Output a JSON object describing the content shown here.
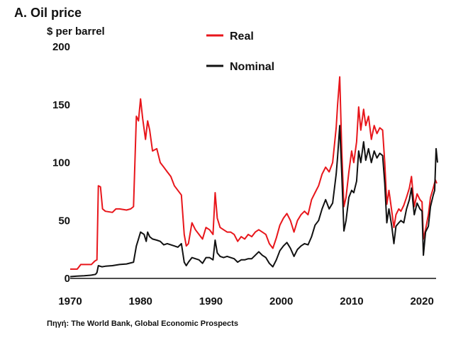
{
  "chart_data": {
    "type": "line",
    "title": "A. Oil price",
    "ylabel": "$ per barrel",
    "xlabel": "",
    "xlim": [
      1970,
      2022
    ],
    "ylim": [
      0,
      200
    ],
    "x_ticks": [
      1970,
      1980,
      1990,
      2000,
      2010,
      2020
    ],
    "y_ticks": [
      0,
      50,
      100,
      150,
      200
    ],
    "legend_position": "top-center",
    "series": [
      {
        "name": "Real",
        "color": "#e8161b",
        "points": [
          [
            1970,
            8
          ],
          [
            1971,
            8
          ],
          [
            1971.5,
            12
          ],
          [
            1972,
            12
          ],
          [
            1973,
            12
          ],
          [
            1973.5,
            15
          ],
          [
            1973.8,
            16
          ],
          [
            1974.0,
            80
          ],
          [
            1974.3,
            79
          ],
          [
            1974.6,
            60
          ],
          [
            1975,
            58
          ],
          [
            1976,
            57
          ],
          [
            1976.5,
            60
          ],
          [
            1977,
            60
          ],
          [
            1978,
            59
          ],
          [
            1978.6,
            60
          ],
          [
            1979.0,
            62
          ],
          [
            1979.4,
            140
          ],
          [
            1979.7,
            136
          ],
          [
            1980.0,
            155
          ],
          [
            1980.3,
            138
          ],
          [
            1980.7,
            120
          ],
          [
            1981.0,
            136
          ],
          [
            1981.3,
            128
          ],
          [
            1981.7,
            110
          ],
          [
            1982.3,
            112
          ],
          [
            1982.8,
            100
          ],
          [
            1983.3,
            96
          ],
          [
            1983.8,
            92
          ],
          [
            1984.3,
            88
          ],
          [
            1984.8,
            80
          ],
          [
            1985.3,
            76
          ],
          [
            1985.8,
            72
          ],
          [
            1986.2,
            38
          ],
          [
            1986.5,
            28
          ],
          [
            1986.8,
            30
          ],
          [
            1987.3,
            48
          ],
          [
            1987.8,
            42
          ],
          [
            1988.3,
            38
          ],
          [
            1988.8,
            34
          ],
          [
            1989.3,
            44
          ],
          [
            1989.8,
            42
          ],
          [
            1990.3,
            38
          ],
          [
            1990.6,
            74
          ],
          [
            1990.9,
            52
          ],
          [
            1991.3,
            44
          ],
          [
            1991.8,
            42
          ],
          [
            1992.3,
            40
          ],
          [
            1992.8,
            40
          ],
          [
            1993.3,
            38
          ],
          [
            1993.8,
            32
          ],
          [
            1994.3,
            36
          ],
          [
            1994.8,
            34
          ],
          [
            1995.3,
            38
          ],
          [
            1995.8,
            36
          ],
          [
            1996.3,
            40
          ],
          [
            1996.8,
            42
          ],
          [
            1997.3,
            40
          ],
          [
            1997.8,
            38
          ],
          [
            1998.3,
            30
          ],
          [
            1998.8,
            26
          ],
          [
            1999.3,
            35
          ],
          [
            1999.8,
            46
          ],
          [
            2000.3,
            52
          ],
          [
            2000.8,
            56
          ],
          [
            2001.3,
            50
          ],
          [
            2001.8,
            40
          ],
          [
            2002.3,
            50
          ],
          [
            2002.8,
            55
          ],
          [
            2003.3,
            58
          ],
          [
            2003.8,
            55
          ],
          [
            2004.3,
            68
          ],
          [
            2004.8,
            74
          ],
          [
            2005.3,
            80
          ],
          [
            2005.8,
            90
          ],
          [
            2006.3,
            96
          ],
          [
            2006.8,
            92
          ],
          [
            2007.3,
            100
          ],
          [
            2007.8,
            130
          ],
          [
            2008.0,
            150
          ],
          [
            2008.3,
            174
          ],
          [
            2008.6,
            110
          ],
          [
            2008.9,
            62
          ],
          [
            2009.2,
            70
          ],
          [
            2009.6,
            92
          ],
          [
            2010.0,
            110
          ],
          [
            2010.3,
            100
          ],
          [
            2010.7,
            118
          ],
          [
            2011.0,
            148
          ],
          [
            2011.3,
            128
          ],
          [
            2011.7,
            146
          ],
          [
            2012.0,
            132
          ],
          [
            2012.4,
            140
          ],
          [
            2012.8,
            120
          ],
          [
            2013.2,
            132
          ],
          [
            2013.6,
            125
          ],
          [
            2014.0,
            130
          ],
          [
            2014.4,
            128
          ],
          [
            2014.7,
            100
          ],
          [
            2015.0,
            64
          ],
          [
            2015.3,
            76
          ],
          [
            2015.7,
            58
          ],
          [
            2016.0,
            44
          ],
          [
            2016.3,
            55
          ],
          [
            2016.7,
            60
          ],
          [
            2017.0,
            58
          ],
          [
            2017.4,
            63
          ],
          [
            2017.8,
            70
          ],
          [
            2018.2,
            78
          ],
          [
            2018.5,
            88
          ],
          [
            2018.9,
            62
          ],
          [
            2019.3,
            73
          ],
          [
            2019.7,
            68
          ],
          [
            2020.0,
            66
          ],
          [
            2020.2,
            34
          ],
          [
            2020.5,
            42
          ],
          [
            2020.9,
            55
          ],
          [
            2021.2,
            70
          ],
          [
            2021.6,
            78
          ],
          [
            2021.9,
            85
          ],
          [
            2022.1,
            82
          ]
        ]
      },
      {
        "name": "Nominal",
        "color": "#111111",
        "points": [
          [
            1970,
            1.5
          ],
          [
            1971,
            2
          ],
          [
            1972,
            2.3
          ],
          [
            1973,
            2.8
          ],
          [
            1973.6,
            3.5
          ],
          [
            1973.8,
            5
          ],
          [
            1974.0,
            11
          ],
          [
            1974.5,
            10
          ],
          [
            1975,
            10.5
          ],
          [
            1976,
            11
          ],
          [
            1977,
            12
          ],
          [
            1978,
            12.5
          ],
          [
            1979.0,
            14
          ],
          [
            1979.4,
            28
          ],
          [
            1979.7,
            34
          ],
          [
            1980.0,
            40
          ],
          [
            1980.5,
            38
          ],
          [
            1980.8,
            32
          ],
          [
            1981.0,
            40
          ],
          [
            1981.3,
            36
          ],
          [
            1981.7,
            34
          ],
          [
            1982.3,
            33
          ],
          [
            1982.8,
            32
          ],
          [
            1983.3,
            29
          ],
          [
            1983.8,
            30
          ],
          [
            1984.3,
            29
          ],
          [
            1984.8,
            28
          ],
          [
            1985.3,
            27
          ],
          [
            1985.8,
            30
          ],
          [
            1986.2,
            14
          ],
          [
            1986.5,
            11
          ],
          [
            1986.8,
            14
          ],
          [
            1987.3,
            18
          ],
          [
            1987.8,
            17
          ],
          [
            1988.3,
            16
          ],
          [
            1988.8,
            13
          ],
          [
            1989.3,
            18
          ],
          [
            1989.8,
            18
          ],
          [
            1990.3,
            16
          ],
          [
            1990.6,
            33
          ],
          [
            1990.9,
            22
          ],
          [
            1991.3,
            19
          ],
          [
            1991.8,
            18
          ],
          [
            1992.3,
            19
          ],
          [
            1992.8,
            18
          ],
          [
            1993.3,
            17
          ],
          [
            1993.8,
            14
          ],
          [
            1994.3,
            16
          ],
          [
            1994.8,
            16
          ],
          [
            1995.3,
            17
          ],
          [
            1995.8,
            17
          ],
          [
            1996.3,
            20
          ],
          [
            1996.8,
            23
          ],
          [
            1997.3,
            20
          ],
          [
            1997.8,
            18
          ],
          [
            1998.3,
            13
          ],
          [
            1998.8,
            10
          ],
          [
            1999.3,
            16
          ],
          [
            1999.8,
            24
          ],
          [
            2000.3,
            28
          ],
          [
            2000.8,
            31
          ],
          [
            2001.3,
            26
          ],
          [
            2001.8,
            19
          ],
          [
            2002.3,
            25
          ],
          [
            2002.8,
            28
          ],
          [
            2003.3,
            30
          ],
          [
            2003.8,
            29
          ],
          [
            2004.3,
            36
          ],
          [
            2004.8,
            46
          ],
          [
            2005.3,
            50
          ],
          [
            2005.8,
            60
          ],
          [
            2006.3,
            68
          ],
          [
            2006.8,
            60
          ],
          [
            2007.3,
            65
          ],
          [
            2007.8,
            90
          ],
          [
            2008.0,
            105
          ],
          [
            2008.3,
            132
          ],
          [
            2008.6,
            90
          ],
          [
            2008.9,
            41
          ],
          [
            2009.2,
            50
          ],
          [
            2009.6,
            70
          ],
          [
            2010.0,
            76
          ],
          [
            2010.3,
            74
          ],
          [
            2010.7,
            84
          ],
          [
            2011.0,
            110
          ],
          [
            2011.3,
            100
          ],
          [
            2011.7,
            118
          ],
          [
            2012.0,
            102
          ],
          [
            2012.4,
            112
          ],
          [
            2012.8,
            100
          ],
          [
            2013.2,
            110
          ],
          [
            2013.6,
            104
          ],
          [
            2014.0,
            108
          ],
          [
            2014.4,
            106
          ],
          [
            2014.7,
            82
          ],
          [
            2015.0,
            48
          ],
          [
            2015.3,
            60
          ],
          [
            2015.7,
            45
          ],
          [
            2016.0,
            30
          ],
          [
            2016.3,
            45
          ],
          [
            2016.7,
            48
          ],
          [
            2017.0,
            50
          ],
          [
            2017.4,
            48
          ],
          [
            2017.8,
            60
          ],
          [
            2018.2,
            68
          ],
          [
            2018.5,
            78
          ],
          [
            2018.9,
            55
          ],
          [
            2019.3,
            65
          ],
          [
            2019.7,
            60
          ],
          [
            2020.0,
            58
          ],
          [
            2020.2,
            20
          ],
          [
            2020.5,
            40
          ],
          [
            2020.9,
            45
          ],
          [
            2021.2,
            62
          ],
          [
            2021.6,
            72
          ],
          [
            2021.8,
            76
          ],
          [
            2022.0,
            112
          ],
          [
            2022.2,
            100
          ]
        ]
      }
    ]
  },
  "source_text": "Πηγή: The World Bank, Global Economic Prospects"
}
